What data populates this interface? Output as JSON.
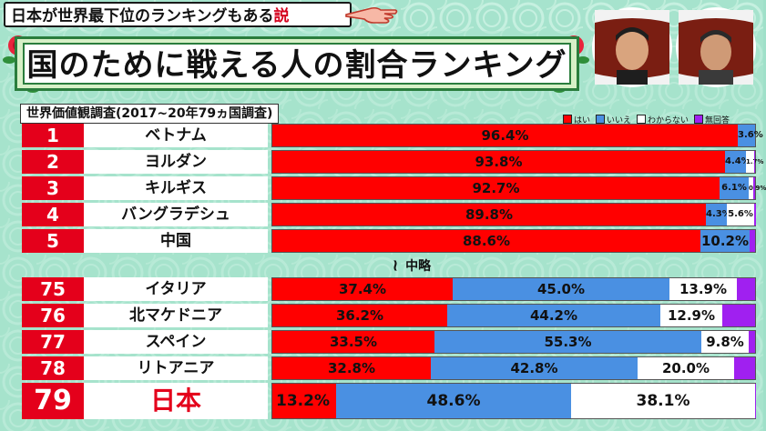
{
  "topic_banner": {
    "text": "日本が世界最下位のランキングもある",
    "emphasis": "説",
    "pointer_icon": "hand-pointer-icon"
  },
  "title": "国のために戦える人の割合ランキング",
  "survey_label": "世界価値観調査(2017~20年79ヵ国調査)",
  "legend": [
    {
      "label": "はい",
      "color": "#ff0000"
    },
    {
      "label": "いいえ",
      "color": "#4a90e2"
    },
    {
      "label": "わからない",
      "color": "#ffffff"
    },
    {
      "label": "無回答",
      "color": "#a020f0"
    }
  ],
  "omission": "中略",
  "rows_top": [
    {
      "rank": "1",
      "country": "ベトナム",
      "yes": 96.4,
      "no": 3.6,
      "unknown": 0,
      "no_answer": 0,
      "labels": {
        "yes": "96.4%",
        "no": "3.6%"
      }
    },
    {
      "rank": "2",
      "country": "ヨルダン",
      "yes": 93.8,
      "no": 4.4,
      "unknown": 1.7,
      "no_answer": 0.1,
      "labels": {
        "yes": "93.8%",
        "no": "4.4%",
        "unknown": "1.7%"
      }
    },
    {
      "rank": "3",
      "country": "キルギス",
      "yes": 92.7,
      "no": 6.1,
      "unknown": 0.9,
      "no_answer": 0.3,
      "labels": {
        "yes": "92.7%",
        "no": "6.1%",
        "unknown": "0.9%"
      }
    },
    {
      "rank": "4",
      "country": "バングラデシュ",
      "yes": 89.8,
      "no": 4.3,
      "unknown": 5.6,
      "no_answer": 0.3,
      "labels": {
        "yes": "89.8%",
        "no": "4.3%",
        "unknown": "5.6%"
      }
    },
    {
      "rank": "5",
      "country": "中国",
      "yes": 88.6,
      "no": 10.2,
      "unknown": 0,
      "no_answer": 1.2,
      "labels": {
        "yes": "88.6%",
        "no": "10.2%"
      }
    }
  ],
  "rows_bottom": [
    {
      "rank": "75",
      "country": "イタリア",
      "yes": 37.4,
      "no": 45.0,
      "unknown": 13.9,
      "no_answer": 3.7,
      "labels": {
        "yes": "37.4%",
        "no": "45.0%",
        "unknown": "13.9%"
      }
    },
    {
      "rank": "76",
      "country": "北マケドニア",
      "yes": 36.2,
      "no": 44.2,
      "unknown": 12.9,
      "no_answer": 6.7,
      "labels": {
        "yes": "36.2%",
        "no": "44.2%",
        "unknown": "12.9%"
      }
    },
    {
      "rank": "77",
      "country": "スペイン",
      "yes": 33.5,
      "no": 55.3,
      "unknown": 9.8,
      "no_answer": 1.4,
      "labels": {
        "yes": "33.5%",
        "no": "55.3%",
        "unknown": "9.8%"
      }
    },
    {
      "rank": "78",
      "country": "リトアニア",
      "yes": 32.8,
      "no": 42.8,
      "unknown": 20.0,
      "no_answer": 4.4,
      "labels": {
        "yes": "32.8%",
        "no": "42.8%",
        "unknown": "20.0%"
      }
    }
  ],
  "row_last": {
    "rank": "79",
    "country": "日本",
    "yes": 13.2,
    "no": 48.6,
    "unknown": 38.1,
    "no_answer": 0.1,
    "labels": {
      "yes": "13.2%",
      "no": "48.6%",
      "unknown": "38.1%"
    }
  },
  "colors": {
    "yes": "#ff0000",
    "no": "#4a90e2",
    "unknown": "#ffffff",
    "no_answer": "#a020f0",
    "rank_bg": "#e4001b",
    "japan_text": "#e4001b"
  }
}
